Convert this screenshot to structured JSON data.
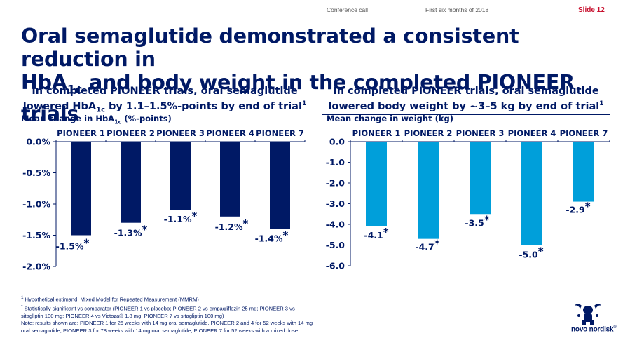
{
  "header": {
    "conference": "Conference call",
    "period": "First six months of 2018",
    "slide": "Slide 12"
  },
  "title": {
    "line1": "Oral semaglutide demonstrated a consistent reduction in",
    "line2_pre": "HbA",
    "line2_sub": "1c",
    "line2_post": " and body weight in the completed PIONEER trials"
  },
  "left_panel": {
    "head_line1": "In completed PIONEER trials, oral semaglutide",
    "head_line2_pre": "lowered HbA",
    "head_line2_sub": "1c",
    "head_line2_post": " by 1.1–1.5%-points by end of trial",
    "head_sup": "1",
    "sub_pre": "Mean change in HbA",
    "sub_sub": "1c",
    "sub_post": " (%-points)"
  },
  "right_panel": {
    "head_line1": "In completed PIONEER trials, oral semaglutide",
    "head_line2": "lowered body weight by ~3–5 kg by end of trial",
    "head_sup": "1",
    "sub": "Mean change in weight (kg)"
  },
  "chart_data": [
    {
      "type": "bar",
      "categories": [
        "PIONEER 1",
        "PIONEER 2",
        "PIONEER 3",
        "PIONEER 4",
        "PIONEER 7"
      ],
      "values": [
        -1.5,
        -1.3,
        -1.1,
        -1.2,
        -1.4
      ],
      "labels": [
        "-1.5%",
        "-1.3%",
        "-1.1%",
        "-1.2%",
        "-1.4%"
      ],
      "significant": [
        true,
        true,
        true,
        true,
        true
      ],
      "ylabel": "Mean change in HbA1c (%-points)",
      "ylim": [
        -2.0,
        0.0
      ],
      "yticks": [
        0.0,
        -0.5,
        -1.0,
        -1.5,
        -2.0
      ],
      "ytick_labels": [
        "0.0%",
        "-0.5%",
        "-1.0%",
        "-1.5%",
        "-2.0%"
      ],
      "color": "#001965"
    },
    {
      "type": "bar",
      "categories": [
        "PIONEER 1",
        "PIONEER 2",
        "PIONEER 3",
        "PIONEER 4",
        "PIONEER 7"
      ],
      "values": [
        -4.1,
        -4.7,
        -3.5,
        -5.0,
        -2.9
      ],
      "labels": [
        "-4.1",
        "-4.7",
        "-3.5",
        "-5.0",
        "-2.9"
      ],
      "significant": [
        true,
        true,
        true,
        true,
        true
      ],
      "ylabel": "Mean change in weight (kg)",
      "ylim": [
        -6.0,
        0.0
      ],
      "yticks": [
        0.0,
        -1.0,
        -2.0,
        -3.0,
        -4.0,
        -5.0,
        -6.0
      ],
      "ytick_labels": [
        "0.0",
        "-1.0",
        "-2.0",
        "-3.0",
        "-4.0",
        "-5.0",
        "-6.0"
      ],
      "color": "#009fda"
    }
  ],
  "footnotes": {
    "f1_sup": "1",
    "f1": " Hypothetical estimand, Mixed Model for Repeated Measurement (MMRM)",
    "f2_sup": "*",
    "f2": " Statistically significant vs comparator (PIONEER 1 vs placebo; PIONEER 2 vs empagliflozin 25 mg; PIONEER 3 vs sitagliptin 100 mg; PIONEER 4 vs Victoza® 1.8 mg; PIONEER 7 vs sitagliptin 100 mg)",
    "note": "Note: results shown are: PIONEER 1 for 26 weeks with 14 mg oral semaglutide, PIONEER 2 and 4 for 52 weeks with 14 mg oral semaglutide; PIONEER 3 for 78 weeks with 14 mg oral semaglutide; PIONEER 7 for 52 weeks with a mixed dose"
  },
  "logo": {
    "text": "novo nordisk",
    "mark": "®",
    "icon": "apis-bull-icon"
  }
}
